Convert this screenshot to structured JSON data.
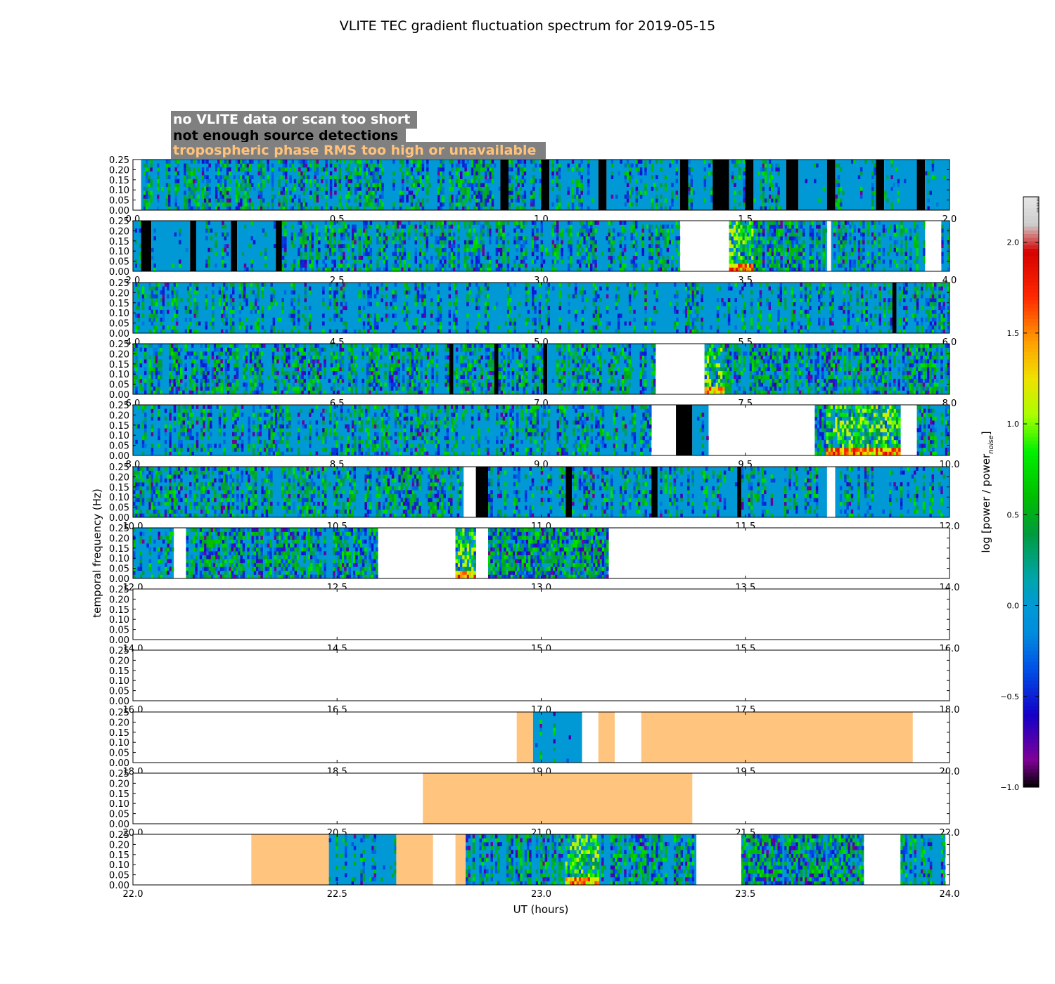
{
  "chart_data": {
    "type": "heatmap",
    "title": "VLITE TEC gradient fluctuation spectrum for 2019-05-15",
    "xlabel": "UT (hours)",
    "ylabel": "temporal frequency (Hz)",
    "colorbar_label": "log [power / power",
    "colorbar_label_sub": "noise",
    "colorbar_label_close": "]",
    "colorbar_range": [
      -1.0,
      2.25
    ],
    "colorbar_ticks": [
      "−1.0",
      "−0.5",
      "0.0",
      "0.5",
      "1.0",
      "1.5",
      "2.0"
    ],
    "colorbar_tick_values": [
      -1.0,
      -0.5,
      0.0,
      0.5,
      1.0,
      1.5,
      2.0
    ],
    "ylim": [
      0.0,
      0.25
    ],
    "ytick_labels": [
      "0.00",
      "0.05",
      "0.10",
      "0.15",
      "0.20",
      "0.25"
    ],
    "legend": [
      {
        "label": "no VLITE data or scan too short",
        "text_color": "#ffffff"
      },
      {
        "label": "not enough source detections",
        "text_color": "#000000"
      },
      {
        "label": "tropospheric phase RMS too high or unavailable",
        "text_color": "#ffc27a"
      }
    ],
    "colors": {
      "legend_box": "#808080",
      "troposphere_flag": "#ffc57f",
      "detection_flag": "#000000",
      "noise_floor": "#0099d5",
      "no_data": "#ffffff"
    },
    "panels": [
      {
        "xlim": [
          0,
          2
        ],
        "ticks": [
          "0.0",
          "0.5",
          "1.0",
          "1.5",
          "2.0"
        ],
        "segments": [
          {
            "s": 0.02,
            "e": 0.9,
            "k": "d",
            "a": 0.4
          },
          {
            "s": 0.9,
            "e": 0.92,
            "k": "b"
          },
          {
            "s": 0.92,
            "e": 1.0,
            "k": "d",
            "a": 0.35
          },
          {
            "s": 1.0,
            "e": 1.02,
            "k": "b"
          },
          {
            "s": 1.02,
            "e": 1.14,
            "k": "d",
            "a": 0.3
          },
          {
            "s": 1.14,
            "e": 1.16,
            "k": "b"
          },
          {
            "s": 1.16,
            "e": 1.34,
            "k": "d",
            "a": 0.25
          },
          {
            "s": 1.34,
            "e": 1.36,
            "k": "b"
          },
          {
            "s": 1.36,
            "e": 1.42,
            "k": "d",
            "a": 0.35
          },
          {
            "s": 1.42,
            "e": 1.46,
            "k": "b"
          },
          {
            "s": 1.46,
            "e": 1.5,
            "k": "d",
            "a": 0.2
          },
          {
            "s": 1.5,
            "e": 1.52,
            "k": "b"
          },
          {
            "s": 1.52,
            "e": 1.6,
            "k": "d",
            "a": 0.35
          },
          {
            "s": 1.6,
            "e": 1.63,
            "k": "b"
          },
          {
            "s": 1.63,
            "e": 1.7,
            "k": "d",
            "a": 0.1
          },
          {
            "s": 1.7,
            "e": 1.72,
            "k": "b"
          },
          {
            "s": 1.72,
            "e": 1.82,
            "k": "d",
            "a": 0.25
          },
          {
            "s": 1.82,
            "e": 1.84,
            "k": "b"
          },
          {
            "s": 1.84,
            "e": 1.92,
            "k": "d",
            "a": 0.1
          },
          {
            "s": 1.92,
            "e": 1.94,
            "k": "b"
          },
          {
            "s": 1.94,
            "e": 2.0,
            "k": "d",
            "a": 0.1
          }
        ]
      },
      {
        "xlim": [
          2,
          4
        ],
        "ticks": [
          "2.0",
          "2.5",
          "3.0",
          "3.5",
          "4.0"
        ],
        "segments": [
          {
            "s": 2.0,
            "e": 2.02,
            "k": "d",
            "a": 0.1
          },
          {
            "s": 2.02,
            "e": 2.045,
            "k": "b"
          },
          {
            "s": 2.045,
            "e": 2.14,
            "k": "d",
            "a": 0.15
          },
          {
            "s": 2.14,
            "e": 2.155,
            "k": "b"
          },
          {
            "s": 2.155,
            "e": 2.24,
            "k": "d",
            "a": 0.1
          },
          {
            "s": 2.24,
            "e": 2.255,
            "k": "b"
          },
          {
            "s": 2.255,
            "e": 2.35,
            "k": "d",
            "a": 0.2
          },
          {
            "s": 2.35,
            "e": 2.365,
            "k": "b"
          },
          {
            "s": 2.365,
            "e": 3.34,
            "k": "d",
            "a": 0.4
          },
          {
            "s": 3.46,
            "e": 3.7,
            "k": "d",
            "a": 0.55,
            "hot": [
              3.46,
              3.52
            ]
          },
          {
            "s": 3.71,
            "e": 3.94,
            "k": "d",
            "a": 0.35
          },
          {
            "s": 3.98,
            "e": 4.0,
            "k": "d",
            "a": 0.3
          }
        ]
      },
      {
        "xlim": [
          4,
          6
        ],
        "ticks": [
          "4.0",
          "4.5",
          "5.0",
          "5.5",
          "6.0"
        ],
        "segments": [
          {
            "s": 4.0,
            "e": 5.86,
            "k": "d",
            "a": 0.3
          },
          {
            "s": 5.86,
            "e": 5.87,
            "k": "b"
          },
          {
            "s": 5.87,
            "e": 6.0,
            "k": "d",
            "a": 0.4
          }
        ]
      },
      {
        "xlim": [
          6,
          8
        ],
        "ticks": [
          "6.0",
          "6.5",
          "7.0",
          "7.5",
          "8.0"
        ],
        "segments": [
          {
            "s": 6.0,
            "e": 6.775,
            "k": "d",
            "a": 0.45
          },
          {
            "s": 6.775,
            "e": 6.785,
            "k": "b"
          },
          {
            "s": 6.785,
            "e": 6.885,
            "k": "d",
            "a": 0.4
          },
          {
            "s": 6.885,
            "e": 6.895,
            "k": "b"
          },
          {
            "s": 6.895,
            "e": 7.005,
            "k": "d",
            "a": 0.4
          },
          {
            "s": 7.005,
            "e": 7.015,
            "k": "b"
          },
          {
            "s": 7.015,
            "e": 7.28,
            "k": "d",
            "a": 0.4
          },
          {
            "s": 7.4,
            "e": 8.0,
            "k": "d",
            "a": 0.5,
            "hot": [
              7.4,
              7.45
            ]
          }
        ]
      },
      {
        "xlim": [
          8,
          10
        ],
        "ticks": [
          "8.0",
          "8.5",
          "9.0",
          "9.5",
          "10.0"
        ],
        "segments": [
          {
            "s": 8.0,
            "e": 9.27,
            "k": "d",
            "a": 0.35
          },
          {
            "s": 9.33,
            "e": 9.37,
            "k": "b"
          },
          {
            "s": 9.37,
            "e": 9.41,
            "k": "d",
            "a": 0.2
          },
          {
            "s": 9.67,
            "e": 9.88,
            "k": "d",
            "a": 0.55,
            "hot": [
              9.7,
              9.88
            ]
          },
          {
            "s": 9.92,
            "e": 10.0,
            "k": "d",
            "a": 0.3
          }
        ]
      },
      {
        "xlim": [
          10,
          12
        ],
        "ticks": [
          "10.0",
          "10.5",
          "11.0",
          "11.5",
          "12.0"
        ],
        "segments": [
          {
            "s": 10.0,
            "e": 10.81,
            "k": "d",
            "a": 0.4
          },
          {
            "s": 10.84,
            "e": 10.87,
            "k": "b"
          },
          {
            "s": 10.87,
            "e": 11.06,
            "k": "d",
            "a": 0.3
          },
          {
            "s": 11.06,
            "e": 11.075,
            "k": "b"
          },
          {
            "s": 11.075,
            "e": 11.27,
            "k": "d",
            "a": 0.35
          },
          {
            "s": 11.27,
            "e": 11.285,
            "k": "b"
          },
          {
            "s": 11.285,
            "e": 11.48,
            "k": "d",
            "a": 0.3
          },
          {
            "s": 11.48,
            "e": 11.49,
            "k": "b"
          },
          {
            "s": 11.49,
            "e": 11.7,
            "k": "d",
            "a": 0.35
          },
          {
            "s": 11.72,
            "e": 12.0,
            "k": "d",
            "a": 0.3
          }
        ]
      },
      {
        "xlim": [
          12,
          14
        ],
        "ticks": [
          "12.0",
          "12.5",
          "13.0",
          "13.5",
          "14.0"
        ],
        "segments": [
          {
            "s": 12.0,
            "e": 12.1,
            "k": "d",
            "a": 0.2
          },
          {
            "s": 12.13,
            "e": 12.6,
            "k": "d",
            "a": 0.5
          },
          {
            "s": 12.79,
            "e": 12.84,
            "k": "d",
            "a": 0.6,
            "hot": [
              12.79,
              12.84
            ]
          },
          {
            "s": 12.87,
            "e": 13.165,
            "k": "d",
            "a": 0.6
          }
        ]
      },
      {
        "xlim": [
          14,
          16
        ],
        "ticks": [
          "14.0",
          "14.5",
          "15.0",
          "15.5",
          "16.0"
        ],
        "segments": []
      },
      {
        "xlim": [
          16,
          18
        ],
        "ticks": [
          "16.0",
          "16.5",
          "17.0",
          "17.5",
          "18.0"
        ],
        "segments": []
      },
      {
        "xlim": [
          18,
          20
        ],
        "ticks": [
          "18.0",
          "18.5",
          "19.0",
          "19.5",
          "20.0"
        ],
        "segments": [
          {
            "s": 18.94,
            "e": 18.98,
            "k": "t"
          },
          {
            "s": 18.98,
            "e": 19.1,
            "k": "d",
            "a": 0.15
          },
          {
            "s": 19.14,
            "e": 19.18,
            "k": "t"
          },
          {
            "s": 19.245,
            "e": 19.91,
            "k": "t"
          }
        ]
      },
      {
        "xlim": [
          20,
          22
        ],
        "ticks": [
          "20.0",
          "20.5",
          "21.0",
          "21.5",
          "22.0"
        ],
        "segments": [
          {
            "s": 20.71,
            "e": 21.37,
            "k": "t"
          }
        ]
      },
      {
        "xlim": [
          22,
          24
        ],
        "ticks": [
          "22.0",
          "22.5",
          "23.0",
          "23.5",
          "24.0"
        ],
        "segments": [
          {
            "s": 22.29,
            "e": 22.48,
            "k": "t"
          },
          {
            "s": 22.48,
            "e": 22.645,
            "k": "d",
            "a": 0.15
          },
          {
            "s": 22.645,
            "e": 22.735,
            "k": "t"
          },
          {
            "s": 22.79,
            "e": 22.815,
            "k": "t"
          },
          {
            "s": 22.815,
            "e": 23.38,
            "k": "d",
            "a": 0.45,
            "hot": [
              23.06,
              23.14
            ]
          },
          {
            "s": 23.49,
            "e": 23.79,
            "k": "d",
            "a": 0.55
          },
          {
            "s": 23.88,
            "e": 23.99,
            "k": "d",
            "a": 0.35
          }
        ]
      }
    ]
  }
}
